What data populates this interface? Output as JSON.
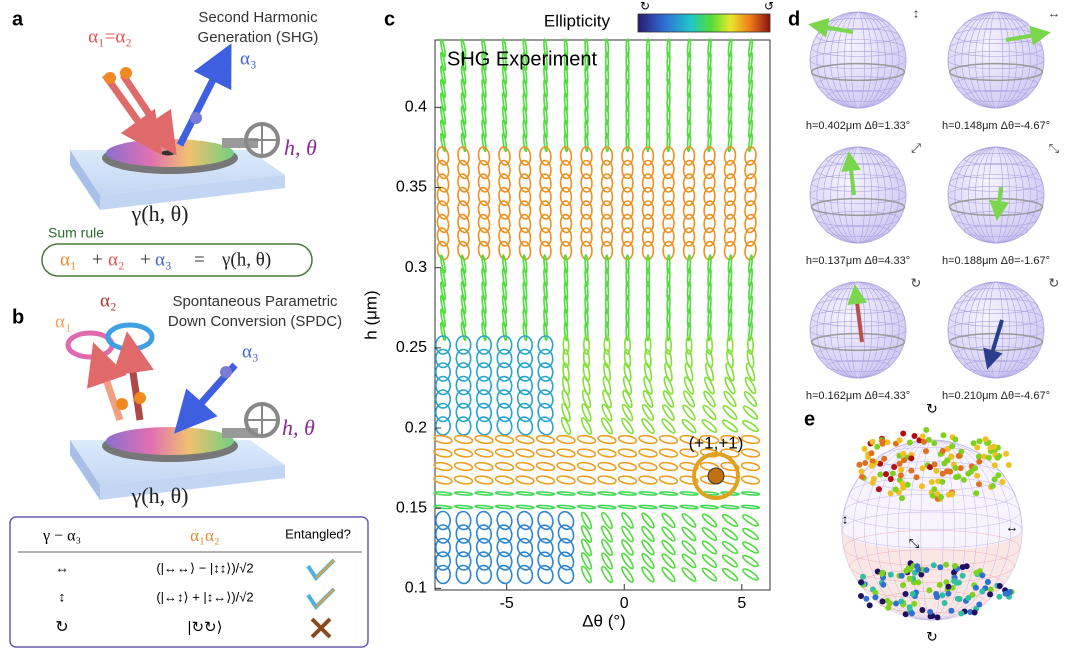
{
  "panel_a": {
    "label": "a",
    "title_line1": "Second Harmonic",
    "title_line2": "Generation (SHG)",
    "input": "α₁=α₂",
    "output": "α₃",
    "knob": "h, θ",
    "gamma": "γ(h, θ)",
    "sum_rule_label": "Sum rule",
    "sum_rule": [
      "α₁",
      "+",
      "α₂",
      "+",
      "α₃",
      "=",
      "γ(h, θ)"
    ]
  },
  "panel_b": {
    "label": "b",
    "title_line1": "Spontaneous Parametric",
    "title_line2": "Down Conversion (SPDC)",
    "photon1": "α₁",
    "photon2": "α₂",
    "pump": "α₃",
    "knob": "h, θ",
    "gamma": "γ(h, θ)",
    "table": {
      "header": [
        "γ − α₃",
        "α₁α₂",
        "Entangled?"
      ],
      "rows": [
        [
          "↔",
          "(|↔↔⟩ − |↕↕⟩)/√2"
        ],
        [
          "↕",
          "(|↔↕⟩ + |↕↔⟩)/√2"
        ],
        [
          "↻",
          "|↻↻⟩"
        ]
      ]
    }
  },
  "chart_data": {
    "type": "ellipse-field",
    "label": "c",
    "title": "SHG Experiment",
    "colorbar_label": "Ellipticity",
    "annotation": "(+1,+1)",
    "xlabel": "Δθ (°)",
    "ylabel": "h (μm)",
    "xlim": [
      -8.05,
      6.2
    ],
    "ylim": [
      0.099,
      0.442
    ],
    "xticks": [
      -5,
      0,
      5
    ],
    "yticks": [
      0.1,
      0.15,
      0.2,
      0.25,
      0.3,
      0.35,
      0.4
    ]
  },
  "panel_d": {
    "label": "d",
    "spheres": [
      {
        "icon": "↕",
        "caption": "h=0.402μm Δθ=1.33°"
      },
      {
        "icon": "↔",
        "caption": "h=0.148μm Δθ=-4.67°"
      },
      {
        "icon": "⤢",
        "caption": "h=0.137μm Δθ=4.33°"
      },
      {
        "icon": "⤡",
        "caption": "h=0.188μm Δθ=-1.67°"
      },
      {
        "icon": "↻",
        "caption": "h=0.162μm Δθ=4.33°"
      },
      {
        "icon": "↻",
        "caption": "h=0.210μm Δθ=-4.67°"
      }
    ]
  },
  "panel_e": {
    "label": "e"
  }
}
